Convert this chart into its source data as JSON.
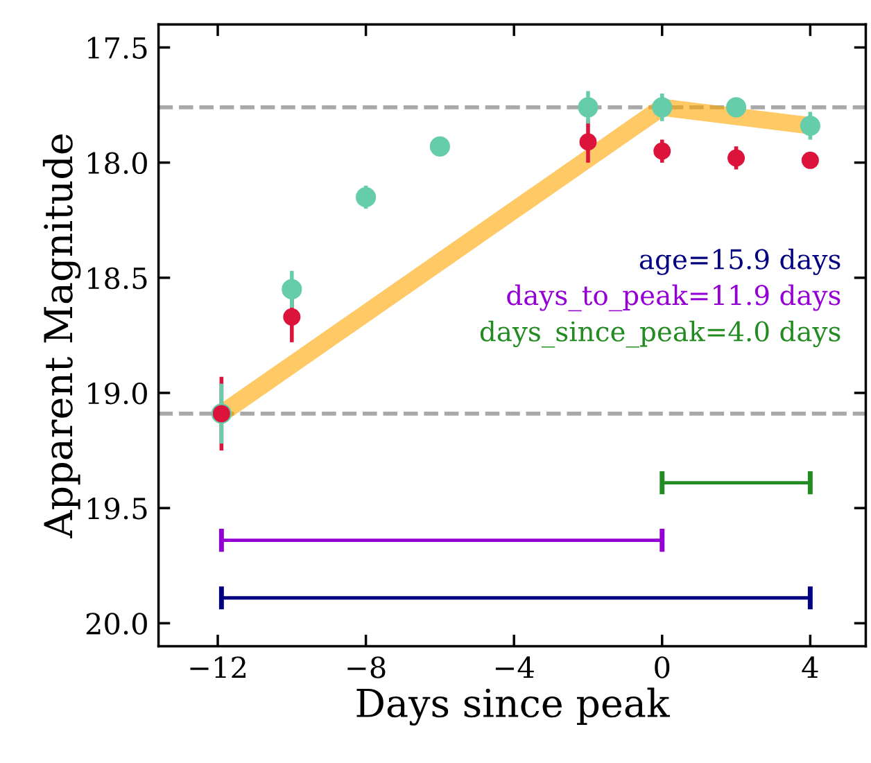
{
  "chart_data": {
    "type": "scatter",
    "xlabel": "Days since peak",
    "ylabel": "Apparent Magnitude",
    "xlim": [
      -13.6,
      5.5
    ],
    "xticks": [
      {
        "value": -12,
        "label": "−12"
      },
      {
        "value": -8,
        "label": "−8"
      },
      {
        "value": -4,
        "label": "−4"
      },
      0,
      4
    ],
    "ylim": [
      20.1,
      17.4
    ],
    "yticks": [
      {
        "value": 17.5,
        "label": "17.5"
      },
      {
        "value": 18.0,
        "label": "18.0"
      },
      {
        "value": 18.5,
        "label": "18.5"
      },
      {
        "value": 19.0,
        "label": "19.0"
      },
      {
        "value": 19.5,
        "label": "19.5"
      },
      {
        "value": 20.0,
        "label": "20.0"
      }
    ],
    "grid": false,
    "legend": "right",
    "marker": "circle",
    "series": [
      {
        "color": "#66cdaa",
        "x": [
          -11.9,
          -10,
          -8,
          -6,
          -2,
          0,
          2,
          4
        ],
        "values": [
          19.09,
          18.55,
          18.15,
          17.93,
          17.76,
          17.76,
          17.76,
          17.84
        ],
        "errors": [
          0.13,
          0.08,
          0.05,
          0.04,
          0.07,
          0.06,
          0.04,
          0.06
        ]
      },
      {
        "color": "#dc143c",
        "x": [
          -11.9,
          -10,
          -2,
          0,
          2,
          4
        ],
        "values": [
          19.09,
          18.67,
          17.91,
          17.95,
          17.98,
          17.99
        ],
        "errors": [
          0.16,
          0.11,
          0.09,
          0.05,
          0.05,
          0.02
        ]
      },
      {
        "type": "line",
        "color": "#ffa500",
        "marker": "none",
        "x": [
          -11.9,
          0,
          4
        ],
        "values": [
          19.09,
          17.76,
          17.84
        ]
      },
      {
        "type": "line",
        "name": "age=15.9 days",
        "color": "#000080",
        "marker": "none",
        "x": [
          -11.9,
          4
        ],
        "values": [
          19.89,
          19.89
        ],
        "errors": [
          0.05,
          0.05
        ]
      },
      {
        "type": "line",
        "name": "days_to_peak=11.9 days",
        "color": "#9400d3",
        "marker": "none",
        "x": [
          -11.9,
          0
        ],
        "values": [
          19.64,
          19.64
        ],
        "errors": [
          0.05,
          0.05
        ]
      },
      {
        "type": "line",
        "name": "days_since_peak=4.0 days",
        "color": "#228b22",
        "marker": "none",
        "x": [
          0,
          4
        ],
        "values": [
          19.39,
          19.39
        ],
        "errors": [
          0.05,
          0.05
        ]
      }
    ],
    "ref_lines": [
      {
        "axis": "y",
        "value": 17.76,
        "color": "#a9a9a9",
        "line_style": "dashed"
      },
      {
        "axis": "y",
        "value": 19.09,
        "color": "#a9a9a9",
        "line_style": "dashed"
      }
    ]
  }
}
